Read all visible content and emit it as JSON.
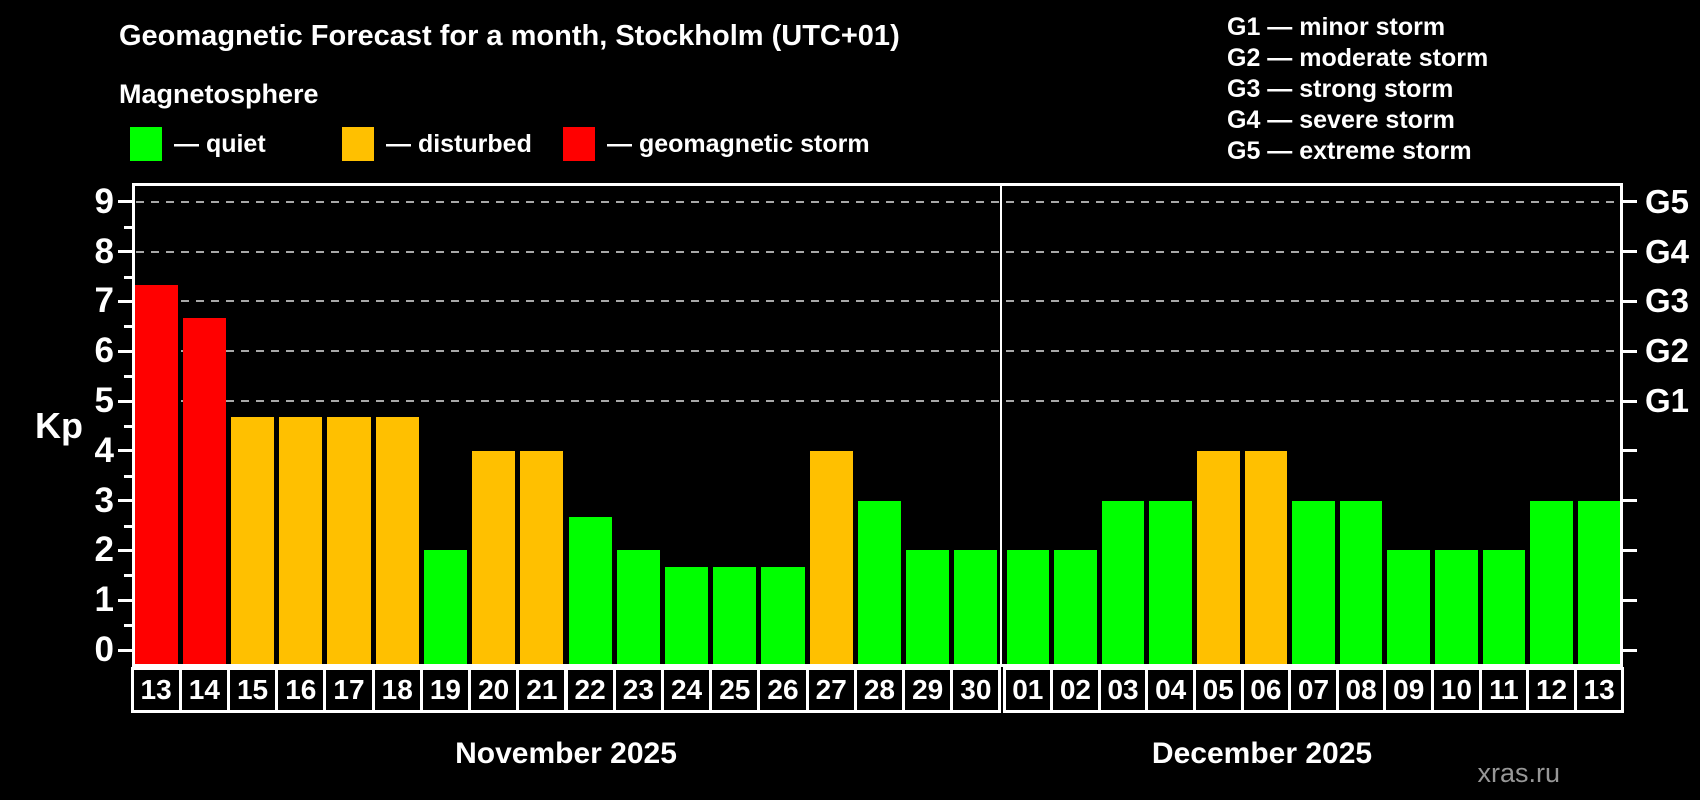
{
  "header": {
    "title": "Geomagnetic Forecast for a month, Stockholm (UTC+01)",
    "subtitle": "Magnetosphere"
  },
  "legend": {
    "items": [
      {
        "state": "quiet",
        "label": "— quiet",
        "color": "#00ff00"
      },
      {
        "state": "disturbed",
        "label": "— disturbed",
        "color": "#ffc000"
      },
      {
        "state": "storm",
        "label": "— geomagnetic storm",
        "color": "#ff0000"
      }
    ]
  },
  "g_legend": {
    "items": [
      {
        "code": "G1",
        "label": "G1 — minor storm",
        "kp": 5
      },
      {
        "code": "G2",
        "label": "G2 — moderate storm",
        "kp": 6
      },
      {
        "code": "G3",
        "label": "G3 — strong storm",
        "kp": 7
      },
      {
        "code": "G4",
        "label": "G4 — severe storm",
        "kp": 8
      },
      {
        "code": "G5",
        "label": "G5 — extreme storm",
        "kp": 9
      }
    ]
  },
  "chart_data": {
    "type": "bar",
    "title": "Geomagnetic Forecast for a month, Stockholm (UTC+01)",
    "ylabel": "Kp",
    "ylim": [
      0,
      9
    ],
    "yticks": [
      0,
      1,
      2,
      3,
      4,
      5,
      6,
      7,
      8,
      9
    ],
    "y_minor_step": 0.5,
    "grid_levels_kp": [
      5,
      6,
      7,
      8,
      9
    ],
    "grid_on": true,
    "colors": {
      "quiet": "#00ff00",
      "disturbed": "#ffc000",
      "storm": "#ff0000"
    },
    "months": [
      {
        "label": "November 2025",
        "bars": [
          {
            "day": "13",
            "kp": 7.33,
            "state": "storm"
          },
          {
            "day": "14",
            "kp": 6.67,
            "state": "storm"
          },
          {
            "day": "15",
            "kp": 4.67,
            "state": "disturbed"
          },
          {
            "day": "16",
            "kp": 4.67,
            "state": "disturbed"
          },
          {
            "day": "17",
            "kp": 4.67,
            "state": "disturbed"
          },
          {
            "day": "18",
            "kp": 4.67,
            "state": "disturbed"
          },
          {
            "day": "19",
            "kp": 2.0,
            "state": "quiet"
          },
          {
            "day": "20",
            "kp": 4.0,
            "state": "disturbed"
          },
          {
            "day": "21",
            "kp": 4.0,
            "state": "disturbed"
          },
          {
            "day": "22",
            "kp": 2.67,
            "state": "quiet"
          },
          {
            "day": "23",
            "kp": 2.0,
            "state": "quiet"
          },
          {
            "day": "24",
            "kp": 1.67,
            "state": "quiet"
          },
          {
            "day": "25",
            "kp": 1.67,
            "state": "quiet"
          },
          {
            "day": "26",
            "kp": 1.67,
            "state": "quiet"
          },
          {
            "day": "27",
            "kp": 4.0,
            "state": "disturbed"
          },
          {
            "day": "28",
            "kp": 3.0,
            "state": "quiet"
          },
          {
            "day": "29",
            "kp": 2.0,
            "state": "quiet"
          },
          {
            "day": "30",
            "kp": 2.0,
            "state": "quiet"
          }
        ]
      },
      {
        "label": "December 2025",
        "bars": [
          {
            "day": "01",
            "kp": 2.0,
            "state": "quiet"
          },
          {
            "day": "02",
            "kp": 2.0,
            "state": "quiet"
          },
          {
            "day": "03",
            "kp": 3.0,
            "state": "quiet"
          },
          {
            "day": "04",
            "kp": 3.0,
            "state": "quiet"
          },
          {
            "day": "05",
            "kp": 4.0,
            "state": "disturbed"
          },
          {
            "day": "06",
            "kp": 4.0,
            "state": "disturbed"
          },
          {
            "day": "07",
            "kp": 3.0,
            "state": "quiet"
          },
          {
            "day": "08",
            "kp": 3.0,
            "state": "quiet"
          },
          {
            "day": "09",
            "kp": 2.0,
            "state": "quiet"
          },
          {
            "day": "10",
            "kp": 2.0,
            "state": "quiet"
          },
          {
            "day": "11",
            "kp": 2.0,
            "state": "quiet"
          },
          {
            "day": "12",
            "kp": 3.0,
            "state": "quiet"
          },
          {
            "day": "13",
            "kp": 3.0,
            "state": "quiet"
          }
        ]
      }
    ]
  },
  "watermark": "xras.ru"
}
